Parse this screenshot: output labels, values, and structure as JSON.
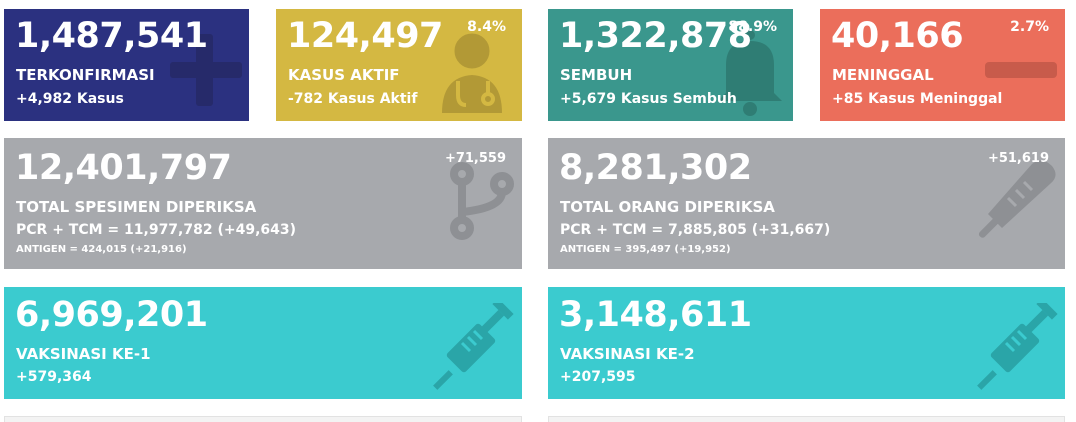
{
  "cards": {
    "terkonfirmasi": {
      "value": "1,487,541",
      "label": "TERKONFIRMASI",
      "sub": "+4,982 Kasus",
      "icon": "plus-icon",
      "color": "#2b3180"
    },
    "kasus_aktif": {
      "value": "124,497",
      "percent": "8.4%",
      "label": "KASUS AKTIF",
      "sub": "-782 Kasus Aktif",
      "icon": "doctor-icon",
      "color": "#d4b842"
    },
    "sembuh": {
      "value": "1,322,878",
      "percent": "88.9%",
      "label": "SEMBUH",
      "sub": "+5,679 Kasus Sembuh",
      "icon": "bell-icon",
      "color": "#3a978d"
    },
    "meninggal": {
      "value": "40,166",
      "percent": "2.7%",
      "label": "MENINGGAL",
      "sub": "+85 Kasus Meninggal",
      "icon": "minus-icon",
      "color": "#eb6e5b"
    },
    "spesimen": {
      "value": "12,401,797",
      "delta": "+71,559",
      "label": "TOTAL SPESIMEN DIPERIKSA",
      "sub": "PCR + TCM = 11,977,782 (+49,643)",
      "small": "ANTIGEN = 424,015 (+21,916)",
      "icon": "branch-icon",
      "color": "#a7a9ad"
    },
    "orang": {
      "value": "8,281,302",
      "delta": "+51,619",
      "label": "TOTAL ORANG DIPERIKSA",
      "sub": "PCR + TCM = 7,885,805 (+31,667)",
      "small": "ANTIGEN = 395,497 (+19,952)",
      "icon": "thermometer-icon",
      "color": "#a7a9ad"
    },
    "vaksin1": {
      "value": "6,969,201",
      "label": "VAKSINASI KE-1",
      "sub": "+579,364",
      "icon": "syringe-icon",
      "color": "#3bcbcf"
    },
    "vaksin2": {
      "value": "3,148,611",
      "label": "VAKSINASI KE-2",
      "sub": "+207,595",
      "icon": "syringe-icon",
      "color": "#3bcbcf"
    }
  }
}
